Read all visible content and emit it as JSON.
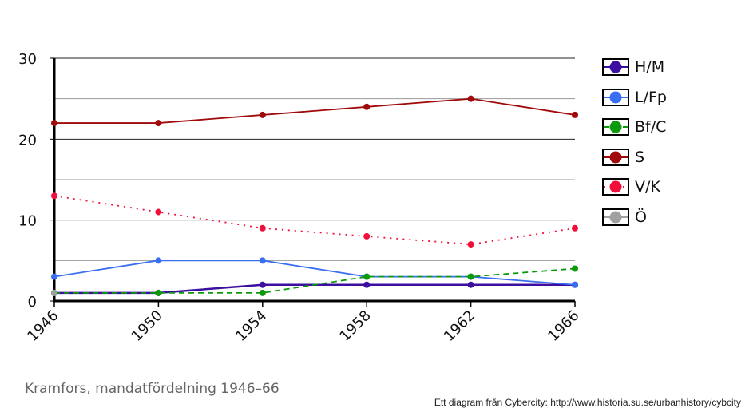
{
  "chart_data": {
    "type": "line",
    "x": [
      "1946",
      "1950",
      "1954",
      "1958",
      "1962",
      "1966"
    ],
    "ylim": [
      0,
      30
    ],
    "yticks": [
      "0",
      "10",
      "20",
      "30"
    ],
    "grid": true,
    "legend_position": "right",
    "series": [
      {
        "name": "H/M",
        "values": [
          1,
          1,
          2,
          2,
          2,
          2
        ],
        "color": "#3c0fa0",
        "line_style": "solid"
      },
      {
        "name": "L/Fp",
        "values": [
          3,
          5,
          5,
          3,
          3,
          2
        ],
        "color": "#3a6ef0",
        "line_style": "solid"
      },
      {
        "name": "Bf/C",
        "values": [
          1,
          1,
          1,
          3,
          3,
          4
        ],
        "color": "#0a9a0a",
        "line_style": "dashed"
      },
      {
        "name": "S",
        "values": [
          22,
          22,
          23,
          24,
          25,
          23
        ],
        "color": "#a00a0a",
        "line_style": "solid"
      },
      {
        "name": "V/K",
        "values": [
          13,
          11,
          9,
          8,
          7,
          9
        ],
        "color": "#f0103c",
        "line_style": "dotted"
      },
      {
        "name": "Ö",
        "values": [
          1,
          null,
          null,
          null,
          null,
          null
        ],
        "color": "#a0a0a0",
        "line_style": "solid"
      }
    ]
  },
  "caption": "Kramfors, mandatfördelning 1946–66",
  "credit": "Ett diagram från Cybercity: http://www.historia.su.se/urbanhistory/cybcity"
}
